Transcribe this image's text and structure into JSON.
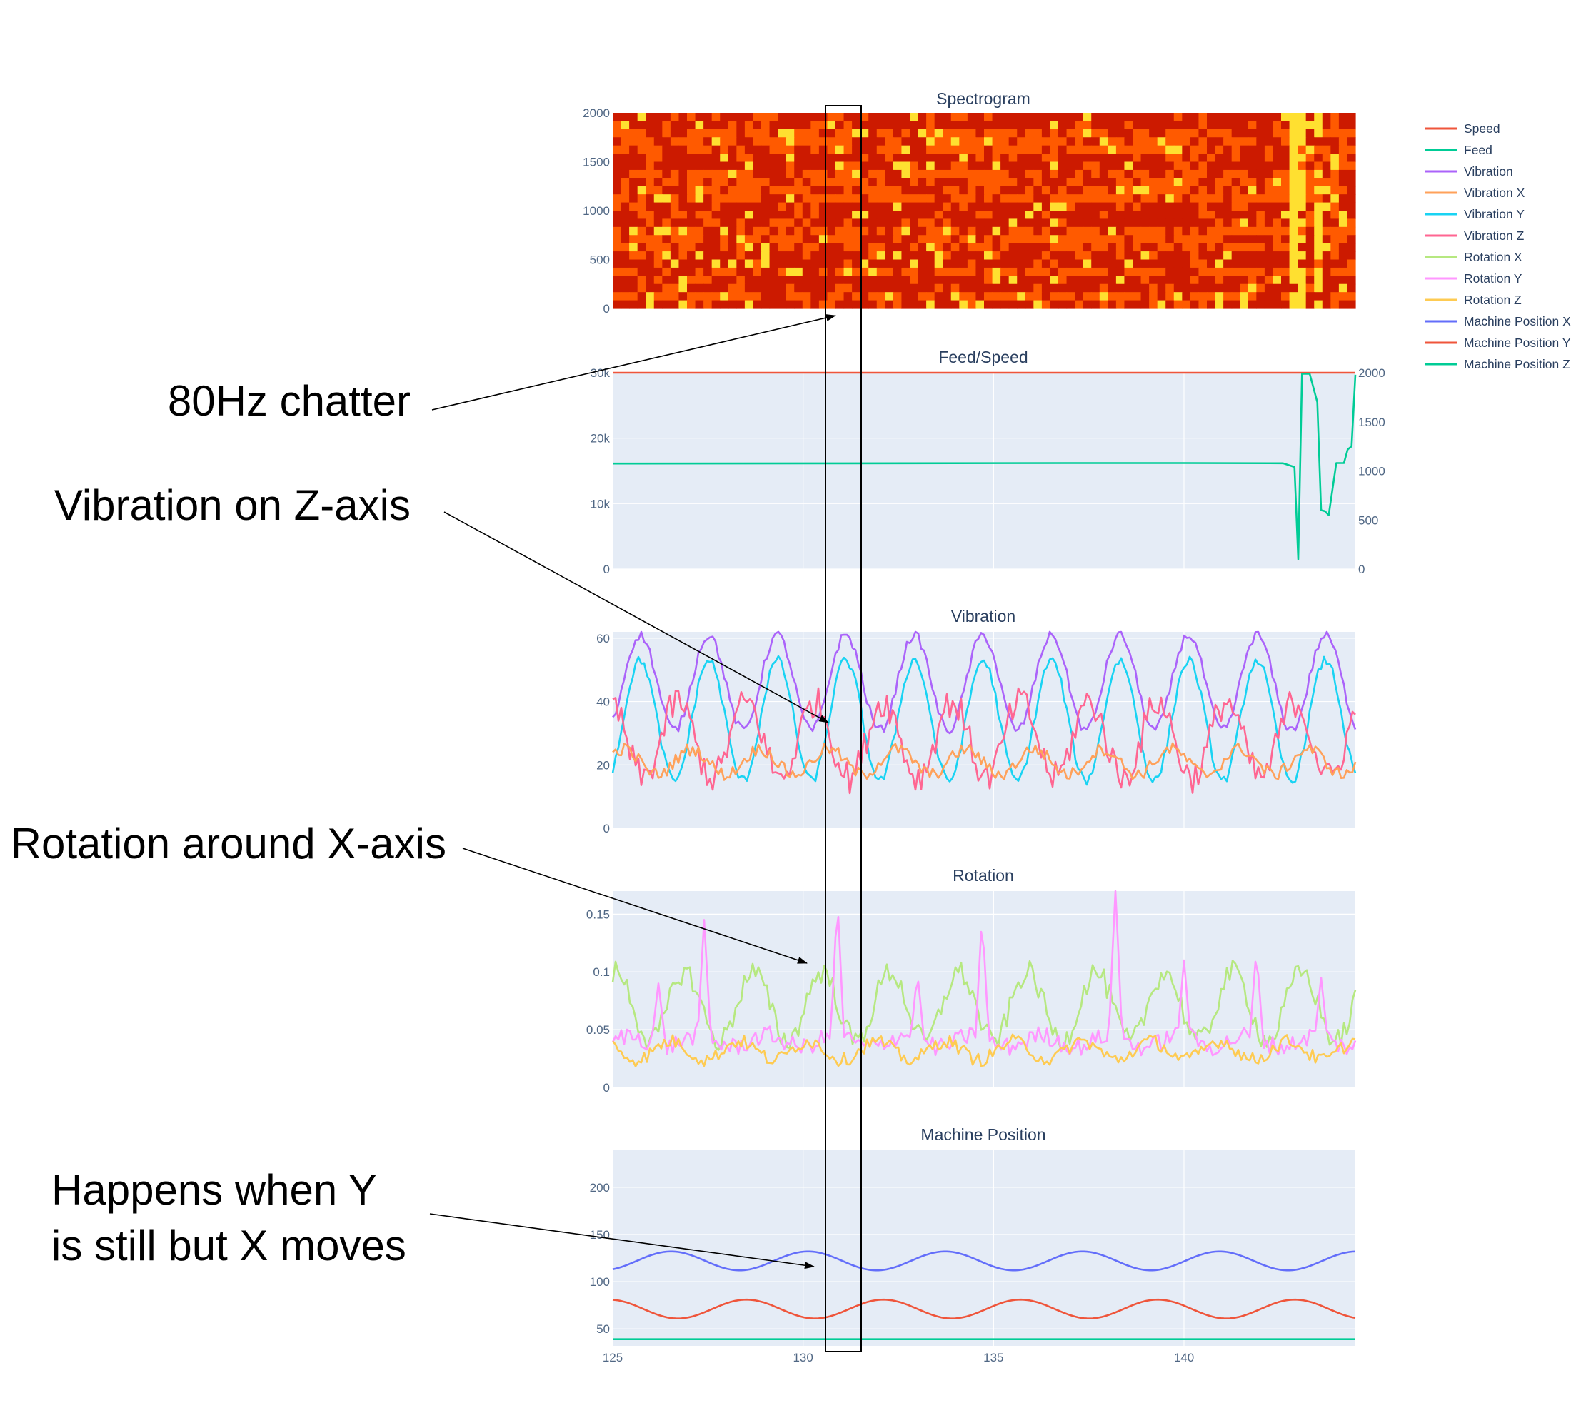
{
  "legend": [
    {
      "name": "Speed",
      "color": "#EF553B"
    },
    {
      "name": "Feed",
      "color": "#00CC96"
    },
    {
      "name": "Vibration",
      "color": "#AB63FA"
    },
    {
      "name": "Vibration X",
      "color": "#FFA15A"
    },
    {
      "name": "Vibration Y",
      "color": "#19D3F3"
    },
    {
      "name": "Vibration Z",
      "color": "#FF6692"
    },
    {
      "name": "Rotation X",
      "color": "#B6E880"
    },
    {
      "name": "Rotation Y",
      "color": "#FF97FF"
    },
    {
      "name": "Rotation Z",
      "color": "#FECB52"
    },
    {
      "name": "Machine Position X",
      "color": "#636EFA"
    },
    {
      "name": "Machine Position Y",
      "color": "#EF553B"
    },
    {
      "name": "Machine Position Z",
      "color": "#00CC96"
    }
  ],
  "annotations": [
    {
      "lines": [
        "80Hz chatter"
      ]
    },
    {
      "lines": [
        "Vibration on Z-axis"
      ]
    },
    {
      "lines": [
        "Rotation around X-axis"
      ]
    },
    {
      "lines": [
        "Happens when Y",
        "is still but X moves"
      ]
    }
  ],
  "chart_data": [
    {
      "type": "heatmap",
      "title": "Spectrogram",
      "xlim": [
        125,
        144.5
      ],
      "ylim": [
        0,
        2000
      ],
      "y_ticks": [
        "0",
        "500",
        "1000",
        "1500",
        "2000"
      ],
      "colorscale": [
        "#cc1a00",
        "#ff5a00",
        "#ffe030"
      ],
      "rows": 24,
      "cols": 90,
      "dark_bands_hz": [
        0,
        250,
        500,
        900,
        1000,
        1500,
        1900,
        2000
      ],
      "bright_columns_x": [
        142.8,
        143.2,
        143.6
      ]
    },
    {
      "type": "line",
      "title": "Feed/Speed",
      "xlim": [
        125,
        144.5
      ],
      "ylim": [
        0,
        30000
      ],
      "y_ticks": [
        "0",
        "10k",
        "20k",
        "30k"
      ],
      "y2lim": [
        0,
        2000
      ],
      "y2_ticks": [
        "0",
        "500",
        "1000",
        "1500",
        "2000"
      ],
      "series": [
        {
          "name": "Speed",
          "color": "#EF553B",
          "axis": "y",
          "x": [
            125,
            144.5
          ],
          "y": [
            30000,
            30000
          ]
        },
        {
          "name": "Feed",
          "color": "#00CC96",
          "axis": "y2",
          "x": [
            125,
            131,
            137,
            140,
            142.6,
            142.9,
            143.0,
            143.1,
            143.3,
            143.5,
            143.6,
            143.7,
            143.8,
            144.0,
            144.1,
            144.2,
            144.3,
            144.4,
            144.5
          ],
          "y": [
            1075,
            1077,
            1080,
            1080,
            1078,
            1040,
            100,
            1990,
            1990,
            1700,
            600,
            590,
            550,
            1080,
            1080,
            1080,
            1220,
            1250,
            1980
          ]
        }
      ]
    },
    {
      "type": "line",
      "title": "Vibration",
      "xlim": [
        125,
        144.5
      ],
      "ylim": [
        0,
        62
      ],
      "y_ticks": [
        "0",
        "20",
        "40",
        "60"
      ],
      "series": [
        {
          "name": "Vibration",
          "color": "#AB63FA",
          "base": 46,
          "amp": 15,
          "period": 1.8,
          "phase": -0.3,
          "noise": 1.5
        },
        {
          "name": "Vibration Y",
          "color": "#19D3F3",
          "base": 34,
          "amp": 19,
          "period": 1.8,
          "phase": -0.3,
          "noise": 1.5
        },
        {
          "name": "Vibration Z",
          "color": "#FF6692",
          "base": 28,
          "amp": 12,
          "period": 1.8,
          "phase": 0.6,
          "noise": 5
        },
        {
          "name": "Vibration X",
          "color": "#FFA15A",
          "base": 21,
          "amp": 4,
          "period": 1.8,
          "phase": 0.2,
          "noise": 2
        }
      ]
    },
    {
      "type": "line",
      "title": "Rotation",
      "xlim": [
        125,
        144.5
      ],
      "ylim": [
        0,
        0.17
      ],
      "y_ticks": [
        "0",
        "0.05",
        "0.1",
        "0.15"
      ],
      "series": [
        {
          "name": "Rotation X",
          "color": "#B6E880",
          "base": 0.07,
          "amp": 0.03,
          "period": 1.8,
          "phase": 0.4,
          "noise": 0.01
        },
        {
          "name": "Rotation Y",
          "color": "#FF97FF",
          "base": 0.04,
          "amp": 0.005,
          "period": 1.8,
          "phase": 0,
          "noise": 0.008,
          "spikes": [
            [
              126.2,
              0.09
            ],
            [
              127.4,
              0.145
            ],
            [
              130.9,
              0.165
            ],
            [
              133.0,
              0.1
            ],
            [
              134.7,
              0.15
            ],
            [
              138.2,
              0.175
            ],
            [
              140.0,
              0.11
            ],
            [
              141.9,
              0.12
            ],
            [
              143.6,
              0.095
            ]
          ]
        },
        {
          "name": "Rotation Z",
          "color": "#FECB52",
          "base": 0.032,
          "amp": 0.008,
          "period": 1.8,
          "phase": 0.8,
          "noise": 0.006
        }
      ]
    },
    {
      "type": "line",
      "title": "Machine Position",
      "xlim": [
        125,
        144.5
      ],
      "ylim": [
        32,
        240
      ],
      "y_ticks": [
        "50",
        "100",
        "150",
        "200"
      ],
      "x_ticks": [
        "125",
        "130",
        "135",
        "140"
      ],
      "series": [
        {
          "name": "Machine Position X",
          "color": "#636EFA",
          "base": 122,
          "amp": 10,
          "period": 3.6,
          "phase": -0.35,
          "noise": 0
        },
        {
          "name": "Machine Position Y",
          "color": "#EF553B",
          "base": 71,
          "amp": 10,
          "period": 3.6,
          "phase": 0.55,
          "noise": 0
        },
        {
          "name": "Machine Position Z",
          "color": "#00CC96",
          "base": 39,
          "amp": 0,
          "period": 3.6,
          "phase": 0,
          "noise": 0
        }
      ]
    }
  ]
}
